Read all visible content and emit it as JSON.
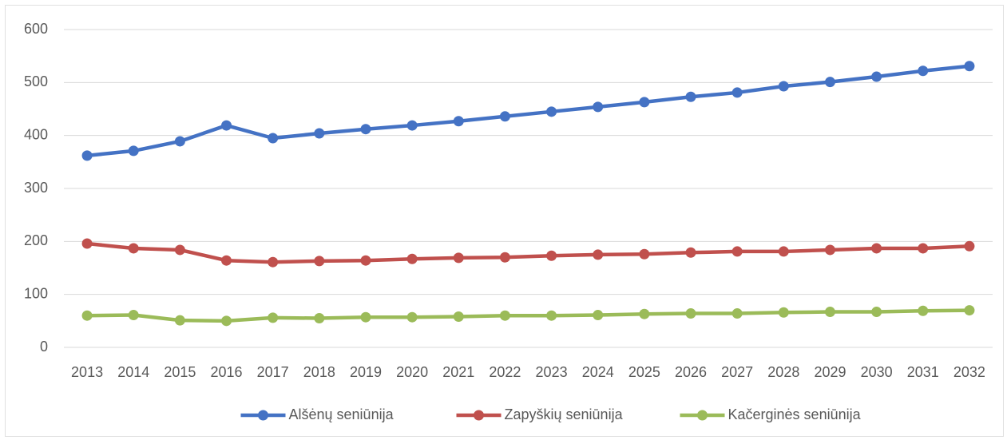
{
  "chart_data": {
    "type": "line",
    "x": [
      2013,
      2014,
      2015,
      2016,
      2017,
      2018,
      2019,
      2020,
      2021,
      2022,
      2023,
      2024,
      2025,
      2026,
      2027,
      2028,
      2029,
      2030,
      2031,
      2032
    ],
    "series": [
      {
        "name": "Alšėnų seniūnija",
        "color": "#4472c4",
        "values": [
          362,
          371,
          389,
          419,
          395,
          404,
          412,
          419,
          427,
          436,
          445,
          454,
          463,
          473,
          481,
          493,
          501,
          511,
          522,
          531
        ]
      },
      {
        "name": "Zapyškių seniūnija",
        "color": "#c0504d",
        "values": [
          196,
          187,
          184,
          164,
          161,
          163,
          164,
          167,
          169,
          170,
          173,
          175,
          176,
          179,
          181,
          181,
          184,
          187,
          187,
          191
        ]
      },
      {
        "name": "Kačerginės seniūnija",
        "color": "#9bbb59",
        "values": [
          60,
          61,
          51,
          50,
          56,
          55,
          57,
          57,
          58,
          60,
          60,
          61,
          63,
          64,
          64,
          66,
          67,
          67,
          69,
          70
        ]
      }
    ],
    "ylim": [
      0,
      600
    ],
    "yticks": [
      0,
      100,
      200,
      300,
      400,
      500,
      600
    ],
    "grid": true,
    "legend": "bottom"
  }
}
